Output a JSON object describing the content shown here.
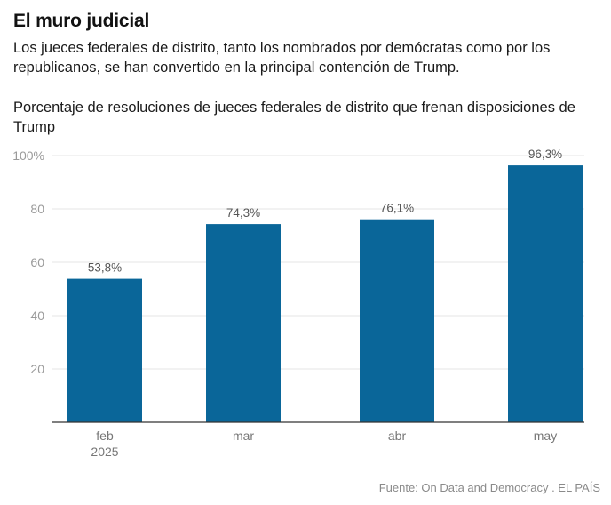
{
  "header": {
    "title": "El muro judicial",
    "subtitle": "Los jueces federales de distrito, tanto los nombrados por demócratas como por los republicanos, se han convertido en la principal contención de Trump.",
    "chart_label": "Porcentaje de resoluciones de jueces federales de distrito que frenan disposiciones de Trump"
  },
  "footer": {
    "source": "Fuente: On Data and Democracy . EL PAÍS"
  },
  "colors": {
    "bar": "#0a6699",
    "grid": "#e6e6e6",
    "axis": "#333333",
    "tick_label": "#9a9a9a",
    "data_label": "#555555"
  },
  "chart_data": {
    "type": "bar",
    "categories": [
      "feb\n2025",
      "mar",
      "abr",
      "may"
    ],
    "values": [
      53.8,
      74.3,
      76.1,
      96.3
    ],
    "data_labels": [
      "53,8%",
      "74,3%",
      "76,1%",
      "96,3%"
    ],
    "y_ticks": [
      20,
      40,
      60,
      80,
      100
    ],
    "y_tick_labels": [
      "20",
      "40",
      "60",
      "80",
      "100%"
    ],
    "ylim": [
      0,
      100
    ],
    "grid": true,
    "title": "Porcentaje de resoluciones de jueces federales de distrito que frenan disposiciones de Trump",
    "xlabel": "",
    "ylabel": ""
  }
}
